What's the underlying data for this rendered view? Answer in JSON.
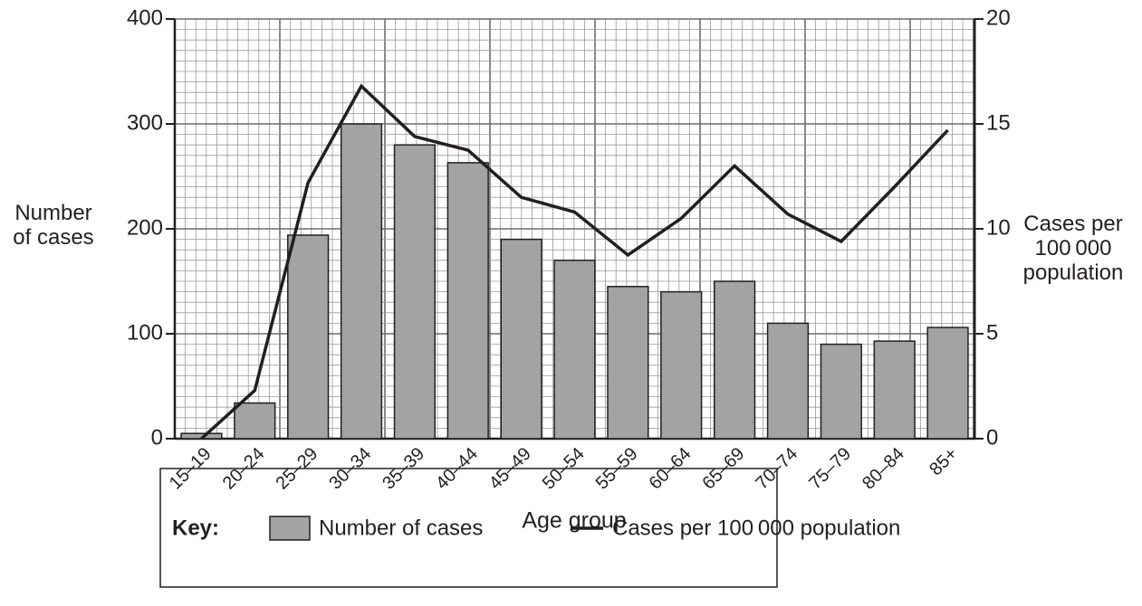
{
  "chart_data": {
    "type": "bar",
    "xlabel": "Age group",
    "ylabel": "Number of cases",
    "y2label": "Cases per 100 000 population",
    "legend_title": "Key:",
    "categories": [
      "15–19",
      "20–24",
      "25–29",
      "30–34",
      "35–39",
      "40–44",
      "45–49",
      "50–54",
      "55–59",
      "60–64",
      "65–69",
      "70–74",
      "75–79",
      "80–84",
      "85+"
    ],
    "series": [
      {
        "name": "Number of cases",
        "type": "bar",
        "color": "#a3a3a3",
        "values": [
          5,
          34,
          194,
          300,
          280,
          263,
          190,
          170,
          145,
          140,
          150,
          110,
          90,
          93,
          106
        ]
      },
      {
        "name": "Cases per 100 000 population",
        "type": "line",
        "axis": "y2",
        "color": "#231f20",
        "values": [
          0,
          2.3,
          12.2,
          16.8,
          14.4,
          13.75,
          11.5,
          10.8,
          8.75,
          10.5,
          13.0,
          10.7,
          9.4,
          12.0,
          14.7
        ]
      }
    ],
    "ylim": [
      0,
      400
    ],
    "yticks": [
      0,
      100,
      200,
      300,
      400
    ],
    "y2lim": [
      0,
      20
    ],
    "y2ticks": [
      0,
      5,
      10,
      15,
      20
    ],
    "grid": true
  }
}
